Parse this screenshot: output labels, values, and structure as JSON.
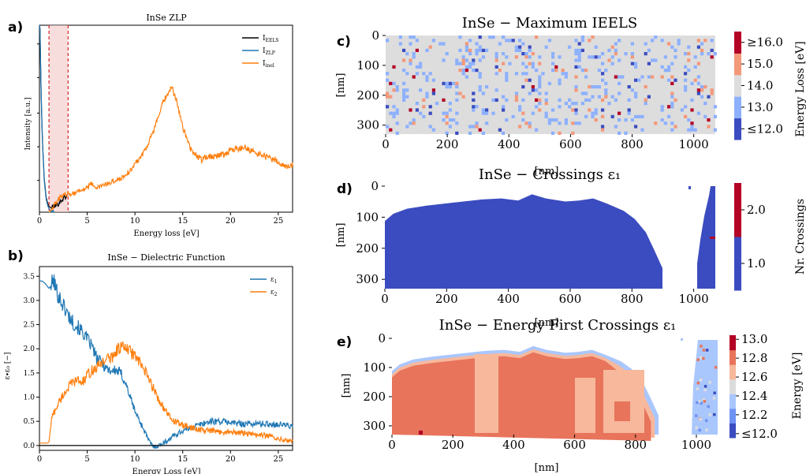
{
  "panels": {
    "a": {
      "label": "a)",
      "title": "InSe ZLP",
      "xlabel": "Energy loss [eV]",
      "ylabel": "Intensity [a.u.]"
    },
    "b": {
      "label": "b)",
      "title": "InSe − Dielectric Function",
      "xlabel": "Energy Loss [eV]",
      "ylabel": "ε∙ε₀ [−]"
    },
    "c": {
      "label": "c)",
      "title": "InSe − Maximum IEELS",
      "xlabel": "[nm]",
      "ylabel": "[nm]",
      "cbar_label": "Energy Loss [eV]"
    },
    "d": {
      "label": "d)",
      "title": "InSe − Crossings ε₁",
      "xlabel": "[nm]",
      "ylabel": "[nm]",
      "cbar_label": "Nr. Crossings"
    },
    "e": {
      "label": "e)",
      "title": "InSe − Energy First Crossings ε₁",
      "xlabel": "[nm]",
      "ylabel": "[nm]",
      "cbar_label": "Energy [eV]"
    }
  },
  "chart_data": [
    {
      "id": "a",
      "type": "line",
      "title": "InSe ZLP",
      "xlabel": "Energy loss [eV]",
      "ylabel": "Intensity [a.u.]",
      "xlim": [
        0,
        26.5
      ],
      "ylim": [
        0,
        1
      ],
      "xticks": [
        0,
        5,
        10,
        15,
        20,
        25
      ],
      "legend": "top-right",
      "highlight_span": [
        1.0,
        3.0
      ],
      "vlines": [
        1.0,
        3.0
      ],
      "series": [
        {
          "name": "I_EELS",
          "color": "#000000",
          "x": [
            0.0,
            0.06,
            0.15,
            0.3,
            0.5,
            0.7,
            0.9,
            1.0,
            1.2,
            1.5,
            2.0,
            2.5,
            3.0
          ],
          "y": [
            1.0,
            0.98,
            0.7,
            0.4,
            0.18,
            0.08,
            0.04,
            0.03,
            0.025,
            0.03,
            0.045,
            0.075,
            0.09
          ]
        },
        {
          "name": "I_ZLP",
          "color": "#1f77b4",
          "x": [
            0.0,
            0.06,
            0.15,
            0.3,
            0.5,
            0.7,
            0.9,
            1.1,
            1.3,
            1.5
          ],
          "y": [
            1.0,
            0.98,
            0.7,
            0.4,
            0.17,
            0.07,
            0.03,
            0.01,
            0.003,
            0.0
          ]
        },
        {
          "name": "I_inel",
          "color": "#ff7f0e",
          "x": [
            1.0,
            1.3,
            1.6,
            2.0,
            2.5,
            3.0,
            3.5,
            4.0,
            4.5,
            5.0,
            5.5,
            6.0,
            6.5,
            7.0,
            7.5,
            8.0,
            8.5,
            9.0,
            9.5,
            10.0,
            10.5,
            11.0,
            11.5,
            12.0,
            12.5,
            13.0,
            13.5,
            13.8,
            14.0,
            14.3,
            14.7,
            15.0,
            15.5,
            16.0,
            16.5,
            17.0,
            17.5,
            18.0,
            18.5,
            19.0,
            19.5,
            20.0,
            20.5,
            21.0,
            21.5,
            22.0,
            22.5,
            23.0,
            23.5,
            24.0,
            24.5,
            25.0,
            25.5,
            26.0,
            26.5
          ],
          "y": [
            0.0,
            0.02,
            0.04,
            0.07,
            0.09,
            0.1,
            0.1,
            0.11,
            0.12,
            0.13,
            0.15,
            0.13,
            0.14,
            0.15,
            0.16,
            0.17,
            0.18,
            0.2,
            0.22,
            0.26,
            0.29,
            0.33,
            0.38,
            0.44,
            0.52,
            0.59,
            0.64,
            0.66,
            0.65,
            0.6,
            0.53,
            0.46,
            0.38,
            0.32,
            0.3,
            0.28,
            0.3,
            0.3,
            0.3,
            0.31,
            0.31,
            0.33,
            0.34,
            0.34,
            0.35,
            0.33,
            0.32,
            0.31,
            0.3,
            0.29,
            0.28,
            0.27,
            0.25,
            0.24,
            0.25
          ]
        }
      ]
    },
    {
      "id": "b",
      "type": "line",
      "title": "InSe − Dielectric Function",
      "xlabel": "Energy Loss [eV]",
      "ylabel": "ε∙ε₀ [−]",
      "xlim": [
        0,
        26.5
      ],
      "ylim": [
        -0.1,
        3.7
      ],
      "xticks": [
        0,
        5,
        10,
        15,
        20,
        25
      ],
      "yticks": [
        0.0,
        0.5,
        1.0,
        1.5,
        2.0,
        2.5,
        3.0,
        3.5
      ],
      "legend": "top-right",
      "hline": 0,
      "series": [
        {
          "name": "ε₁",
          "color": "#1f77b4",
          "x": [
            0.0,
            0.3,
            0.6,
            1.0,
            1.2,
            1.5,
            1.7,
            2.0,
            2.5,
            3.0,
            3.5,
            4.0,
            4.5,
            5.0,
            5.5,
            6.0,
            6.5,
            7.0,
            7.5,
            8.0,
            8.5,
            9.0,
            9.5,
            10.0,
            10.5,
            11.0,
            11.5,
            12.0,
            12.5,
            13.0,
            13.5,
            14.0,
            15.0,
            16.0,
            17.0,
            18.0,
            19.0,
            20.0,
            21.0,
            22.0,
            23.0,
            24.0,
            25.0,
            26.0,
            26.5
          ],
          "y": [
            3.4,
            3.4,
            3.35,
            3.25,
            3.3,
            3.42,
            3.25,
            3.1,
            2.9,
            2.7,
            2.55,
            2.45,
            2.35,
            2.2,
            2.05,
            1.8,
            1.72,
            1.6,
            1.55,
            1.55,
            1.5,
            1.3,
            1.0,
            0.72,
            0.5,
            0.3,
            0.08,
            -0.03,
            0.0,
            0.05,
            0.12,
            0.2,
            0.3,
            0.38,
            0.45,
            0.5,
            0.5,
            0.48,
            0.45,
            0.45,
            0.45,
            0.44,
            0.44,
            0.42,
            0.38
          ]
        },
        {
          "name": "ε₂",
          "color": "#ff7f0e",
          "x": [
            0.0,
            0.8,
            1.0,
            1.3,
            1.6,
            2.0,
            2.5,
            3.0,
            3.5,
            4.0,
            4.5,
            5.0,
            5.5,
            6.0,
            6.5,
            7.0,
            7.5,
            8.0,
            8.5,
            9.0,
            9.5,
            10.0,
            10.5,
            11.0,
            11.5,
            12.0,
            12.5,
            13.0,
            13.5,
            14.0,
            14.5,
            15.0,
            16.0,
            17.0,
            18.0,
            19.0,
            20.0,
            21.0,
            22.0,
            23.0,
            24.0,
            25.0,
            26.0,
            26.5
          ],
          "y": [
            0.05,
            0.05,
            0.07,
            0.6,
            0.7,
            0.88,
            1.05,
            1.2,
            1.3,
            1.35,
            1.3,
            1.45,
            1.55,
            1.6,
            1.72,
            1.8,
            1.8,
            1.95,
            2.05,
            2.0,
            1.95,
            1.85,
            1.7,
            1.55,
            1.35,
            1.15,
            0.95,
            0.78,
            0.62,
            0.52,
            0.46,
            0.42,
            0.36,
            0.32,
            0.3,
            0.28,
            0.28,
            0.26,
            0.24,
            0.22,
            0.2,
            0.15,
            0.1,
            0.08
          ]
        }
      ]
    },
    {
      "id": "c",
      "type": "heatmap",
      "title": "InSe − Maximum IEELS",
      "xlabel": "[nm]",
      "ylabel": "[nm]",
      "xlim": [
        0,
        1070
      ],
      "ylim": [
        330,
        0
      ],
      "xticks": [
        0,
        200,
        400,
        600,
        800,
        1000
      ],
      "yticks": [
        0,
        100,
        200,
        300
      ],
      "colorbar": {
        "label": "Energy Loss [eV]",
        "ticks": [
          "≤12.0",
          "13.0",
          "14.0",
          "15.0",
          "≥16.0"
        ],
        "colors": [
          "#3b4cc0",
          "#8db0fe",
          "#dddddd",
          "#f4987a",
          "#b40426"
        ]
      },
      "description_values": "mostly 14.0 eV with scattered 13.0, 15.0, ≥12.0 and ≥16.0 pixels"
    },
    {
      "id": "d",
      "type": "heatmap",
      "title": "InSe − Crossings ε₁",
      "xlabel": "[nm]",
      "ylabel": "[nm]",
      "xlim": [
        0,
        1070
      ],
      "ylim": [
        330,
        0
      ],
      "xticks": [
        0,
        200,
        400,
        600,
        800,
        1000
      ],
      "yticks": [
        0,
        100,
        200,
        300
      ],
      "colorbar": {
        "label": "Nr. Crossings",
        "ticks": [
          "1.0",
          "2.0"
        ],
        "colors": [
          "#3b4cc0",
          "#b40426"
        ]
      },
      "description_values": "1.0 crossing throughout the covered region; a few 2.0 pixels near x≈1050 nm"
    },
    {
      "id": "e",
      "type": "heatmap",
      "title": "InSe − Energy First Crossings ε₁",
      "xlabel": "[nm]",
      "ylabel": "[nm]",
      "xlim": [
        0,
        1070
      ],
      "ylim": [
        330,
        0
      ],
      "xticks": [
        0,
        200,
        400,
        600,
        800,
        1000
      ],
      "yticks": [
        0,
        100,
        200,
        300
      ],
      "colorbar": {
        "label": "Energy [eV]",
        "ticks": [
          "≤12.0",
          "12.2",
          "12.4",
          "12.6",
          "12.8",
          "13.0"
        ],
        "colors": [
          "#3b4cc0",
          "#6f92f3",
          "#aac7fd",
          "#dddcdc",
          "#f7b89c",
          "#e7745b",
          "#b40426"
        ]
      },
      "description_values": "predominantly 12.8 eV in the interior, 12.6 eV patches and 12.2–12.4 eV along the boundary"
    }
  ]
}
